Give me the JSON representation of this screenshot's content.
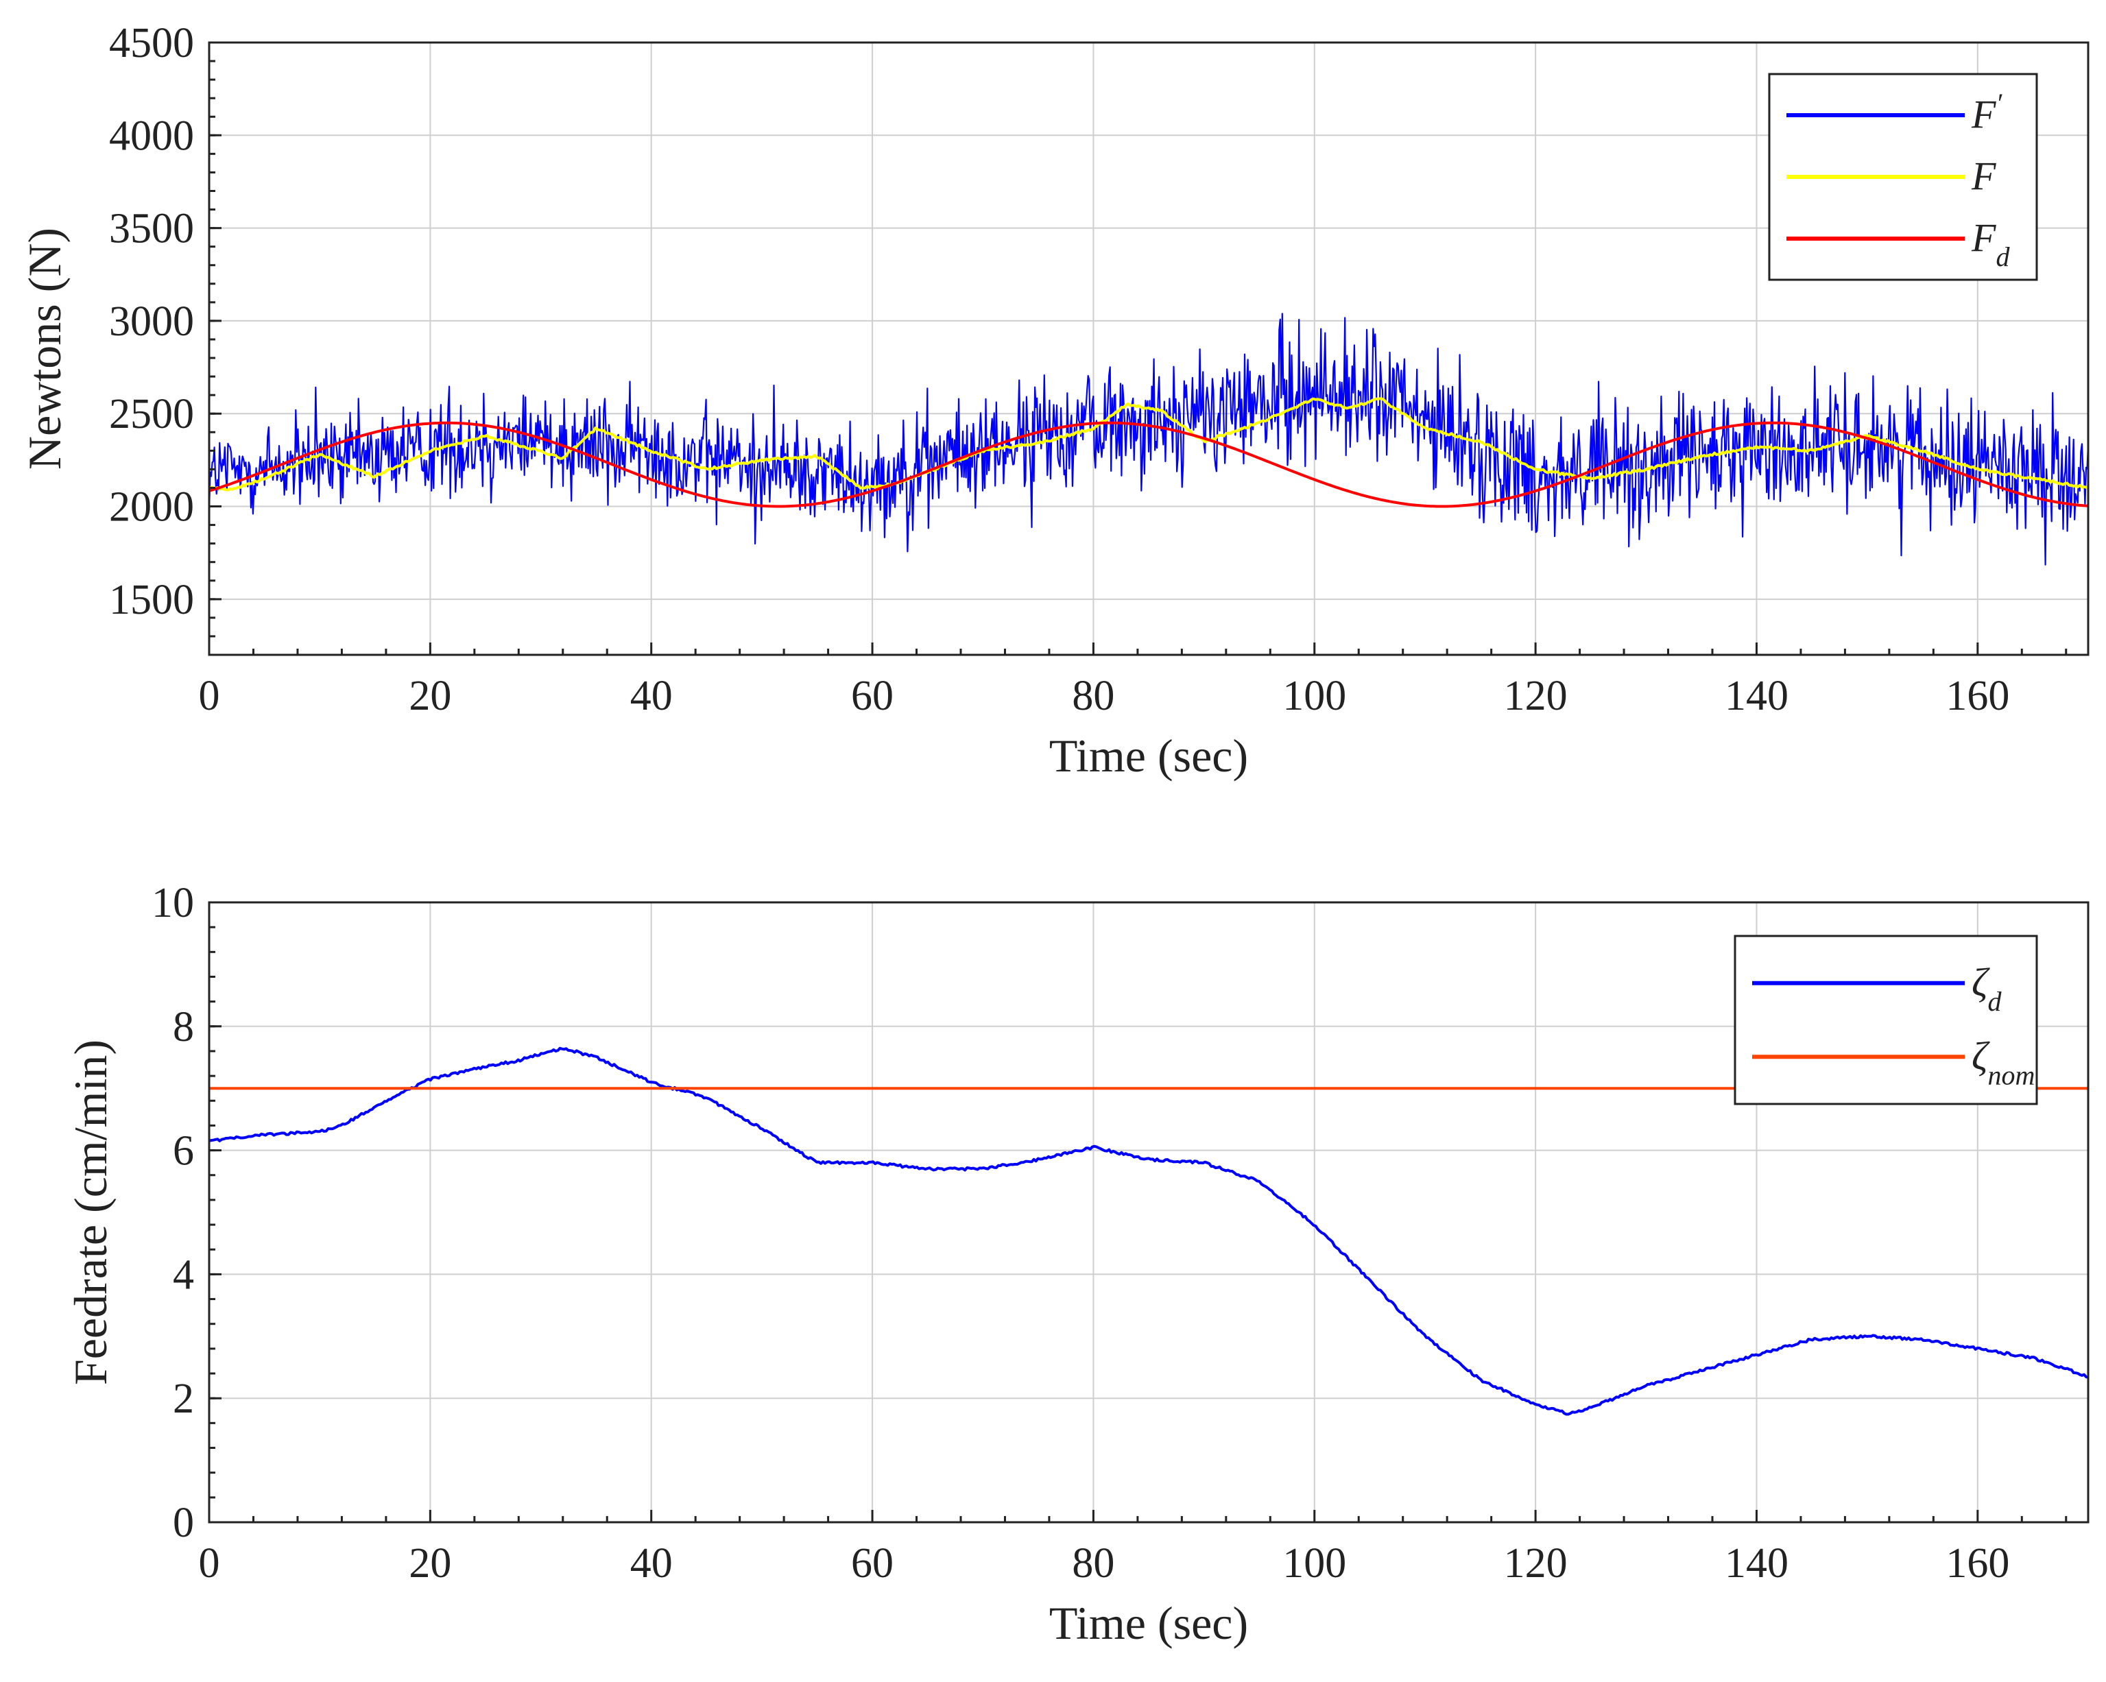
{
  "chart_data": [
    {
      "type": "line",
      "xlabel": "Time (sec)",
      "ylabel": "Newtons (N)",
      "xlim": [
        0,
        170
      ],
      "ylim": [
        1200,
        4500
      ],
      "xticks": [
        0,
        20,
        40,
        60,
        80,
        100,
        120,
        140,
        160
      ],
      "xtick_labels": [
        "0",
        "20",
        "40",
        "60",
        "80",
        "100",
        "120",
        "140",
        "160"
      ],
      "yticks": [
        1500,
        2000,
        2500,
        3000,
        3500,
        4000,
        4500
      ],
      "ytick_labels": [
        "1500",
        "2000",
        "2500",
        "3000",
        "3500",
        "4000",
        "4500"
      ],
      "grid": true,
      "legend_position": "top-right",
      "series": [
        {
          "name": "F'",
          "legend_main": "F",
          "legend_sup": "′",
          "color": "#0000ff",
          "style": "noisy",
          "x": [
            0,
            10,
            20,
            30,
            40,
            50,
            60,
            70,
            80,
            90,
            100,
            106,
            110,
            120,
            130,
            140,
            150,
            160,
            170
          ],
          "values": [
            2180,
            2230,
            2320,
            2380,
            2300,
            2220,
            2150,
            2300,
            2450,
            2480,
            2620,
            2600,
            2450,
            2180,
            2200,
            2300,
            2350,
            2250,
            2150
          ],
          "noise_amplitude": [
            350,
            380,
            400,
            420,
            400,
            380,
            400,
            420,
            450,
            480,
            520,
            520,
            500,
            520,
            520,
            500,
            480,
            450,
            400
          ]
        },
        {
          "name": "F",
          "legend_main": "F",
          "legend_sup": "",
          "color": "#ffff00",
          "style": "smooth",
          "x": [
            0,
            2,
            5,
            10,
            15,
            20,
            25,
            28,
            32,
            35,
            40,
            45,
            50,
            55,
            59,
            62,
            66,
            70,
            75,
            80,
            83,
            86,
            90,
            95,
            100,
            103,
            106,
            110,
            115,
            120,
            125,
            130,
            135,
            140,
            145,
            150,
            155,
            160,
            165,
            170
          ],
          "values": [
            2100,
            2090,
            2150,
            2280,
            2160,
            2300,
            2380,
            2330,
            2260,
            2420,
            2300,
            2200,
            2250,
            2270,
            2100,
            2120,
            2210,
            2300,
            2340,
            2420,
            2550,
            2520,
            2350,
            2450,
            2580,
            2530,
            2580,
            2420,
            2350,
            2200,
            2150,
            2200,
            2270,
            2320,
            2300,
            2380,
            2300,
            2200,
            2150,
            2100
          ]
        },
        {
          "name": "F_d",
          "legend_main": "F",
          "legend_sub": "d",
          "color": "#ff0000",
          "style": "sine",
          "offset": 2225,
          "amplitude": 225,
          "period": 60,
          "phase_x": 6.5
        }
      ]
    },
    {
      "type": "line",
      "xlabel": "Time (sec)",
      "ylabel": "Feedrate (cm/min)",
      "xlim": [
        0,
        170
      ],
      "ylim": [
        0,
        10
      ],
      "xticks": [
        0,
        20,
        40,
        60,
        80,
        100,
        120,
        140,
        160
      ],
      "xtick_labels": [
        "0",
        "20",
        "40",
        "60",
        "80",
        "100",
        "120",
        "140",
        "160"
      ],
      "yticks": [
        0,
        2,
        4,
        6,
        8,
        10
      ],
      "ytick_labels": [
        "0",
        "2",
        "4",
        "6",
        "8",
        "10"
      ],
      "grid": true,
      "legend_position": "top-right",
      "series": [
        {
          "name": "ζ_d",
          "legend_main": "ζ",
          "legend_sub": "d",
          "color": "#0000ff",
          "style": "smooth",
          "x": [
            0,
            5,
            10,
            12,
            15,
            20,
            25,
            28,
            32,
            35,
            40,
            45,
            50,
            55,
            60,
            65,
            70,
            75,
            80,
            85,
            90,
            95,
            100,
            105,
            110,
            115,
            120,
            123,
            125,
            130,
            135,
            140,
            145,
            150,
            155,
            160,
            165,
            170
          ],
          "values": [
            6.15,
            6.25,
            6.3,
            6.4,
            6.7,
            7.15,
            7.35,
            7.45,
            7.65,
            7.5,
            7.1,
            6.85,
            6.35,
            5.8,
            5.8,
            5.7,
            5.7,
            5.85,
            6.05,
            5.85,
            5.8,
            5.5,
            4.8,
            3.9,
            3.0,
            2.3,
            1.9,
            1.75,
            1.85,
            2.2,
            2.45,
            2.7,
            2.95,
            3.0,
            2.95,
            2.8,
            2.65,
            2.35
          ]
        },
        {
          "name": "ζ_nom",
          "legend_main": "ζ",
          "legend_sub": "nom",
          "color": "#ff4400",
          "style": "constant",
          "x": [
            0,
            170
          ],
          "values": [
            7,
            7
          ]
        }
      ]
    }
  ]
}
